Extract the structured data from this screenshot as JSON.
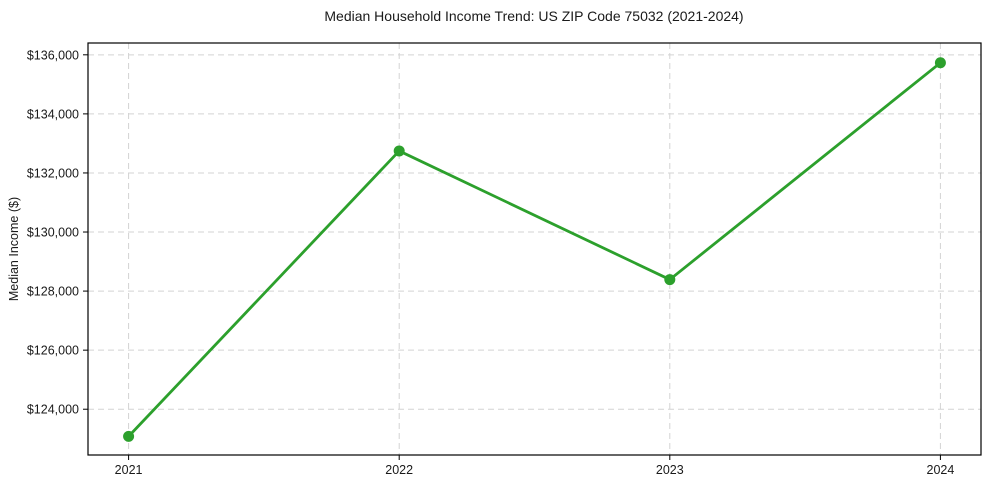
{
  "figure": {
    "title": "Median Household Income Trend: US ZIP Code 75032 (2021-2024)"
  },
  "chart_data": {
    "type": "line",
    "title": "Median Household Income Trend: US ZIP Code 75032 (2021-2024)",
    "xlabel": "",
    "ylabel": "Median Income ($)",
    "categories": [
      "2021",
      "2022",
      "2023",
      "2024"
    ],
    "x": [
      2021,
      2022,
      2023,
      2024
    ],
    "series": [
      {
        "name": "Median Household Income",
        "values": [
          123080,
          132745,
          128390,
          135730
        ]
      }
    ],
    "xlim": [
      2020.85,
      2024.15
    ],
    "ylim": [
      122450,
      136400
    ],
    "yticks": [
      124000,
      126000,
      128000,
      130000,
      132000,
      134000,
      136000
    ],
    "ytick_labels": [
      "$124,000",
      "$126,000",
      "$128,000",
      "$130,000",
      "$132,000",
      "$134,000",
      "$136,000"
    ],
    "xticks": [
      2021,
      2022,
      2023,
      2024
    ],
    "xtick_labels": [
      "2021",
      "2022",
      "2023",
      "2024"
    ],
    "grid": true,
    "grid_style": "dashed",
    "legend_position": "none",
    "colors": {
      "line": "#2ca02c",
      "marker": "#2ca02c",
      "grid": "#d3d3d3",
      "spine": "#000000",
      "text": "#1a1a1a",
      "background": "#ffffff"
    }
  }
}
